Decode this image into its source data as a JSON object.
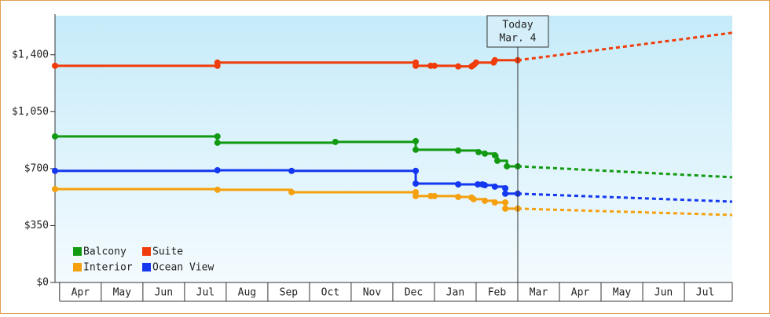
{
  "chart_data": {
    "type": "step-line",
    "xlim": [
      -0.11,
      16.15
    ],
    "ylim": [
      0,
      1640
    ],
    "xticks": [
      {
        "value": 0.5,
        "label": "Apr"
      },
      {
        "value": 1.5,
        "label": "May"
      },
      {
        "value": 2.5,
        "label": "Jun"
      },
      {
        "value": 3.5,
        "label": "Jul"
      },
      {
        "value": 4.5,
        "label": "Aug"
      },
      {
        "value": 5.5,
        "label": "Sep"
      },
      {
        "value": 6.5,
        "label": "Oct"
      },
      {
        "value": 7.5,
        "label": "Nov"
      },
      {
        "value": 8.5,
        "label": "Dec"
      },
      {
        "value": 9.5,
        "label": "Jan"
      },
      {
        "value": 10.5,
        "label": "Feb"
      },
      {
        "value": 11.5,
        "label": "Mar"
      },
      {
        "value": 12.5,
        "label": "Apr"
      },
      {
        "value": 13.5,
        "label": "May"
      },
      {
        "value": 14.5,
        "label": "Jun"
      },
      {
        "value": 15.5,
        "label": "Jul"
      }
    ],
    "yticks": [
      {
        "value": 0,
        "label": "$0"
      },
      {
        "value": 350,
        "label": "$350"
      },
      {
        "value": 700,
        "label": "$700"
      },
      {
        "value": 1050,
        "label": "$1,050"
      },
      {
        "value": 1400,
        "label": "$1,400"
      }
    ],
    "annotation": {
      "text": [
        "Today",
        "Mar. 4"
      ],
      "x": 11.0
    },
    "legend_position": "lower-left",
    "series": [
      {
        "name": "Balcony",
        "color": "#129a12",
        "x": [
          -0.11,
          3.79,
          3.79,
          6.62,
          8.55,
          8.55,
          9.57,
          10.06,
          10.21,
          10.45,
          10.51,
          10.74,
          11.0
        ],
        "values": [
          898,
          898,
          859,
          864,
          869,
          816,
          811,
          801,
          792,
          782,
          748,
          714,
          714
        ],
        "forecast": {
          "x": [
            11.0,
            16.15
          ],
          "values": [
            714,
            647
          ]
        }
      },
      {
        "name": "Suite",
        "color": "#f03c0a",
        "x": [
          -0.11,
          3.79,
          3.79,
          8.55,
          8.55,
          8.91,
          9.0,
          9.57,
          9.89,
          9.94,
          10.0,
          10.42,
          10.45,
          11.0
        ],
        "values": [
          1332,
          1332,
          1352,
          1352,
          1332,
          1332,
          1332,
          1328,
          1328,
          1337,
          1352,
          1352,
          1366,
          1366
        ],
        "forecast": {
          "x": [
            11.0,
            16.15
          ],
          "values": [
            1366,
            1535
          ]
        }
      },
      {
        "name": "Interior",
        "color": "#f5a00f",
        "x": [
          -0.11,
          3.79,
          5.57,
          8.55,
          8.55,
          8.91,
          9.0,
          9.57,
          9.89,
          9.94,
          10.21,
          10.45,
          10.7,
          10.7,
          11.0
        ],
        "values": [
          574,
          570,
          555,
          555,
          531,
          531,
          531,
          526,
          522,
          512,
          502,
          492,
          492,
          454,
          454
        ],
        "forecast": {
          "x": [
            11.0,
            16.15
          ],
          "values": [
            454,
            415
          ]
        }
      },
      {
        "name": "Ocean View",
        "color": "#1437f0",
        "x": [
          -0.11,
          3.79,
          5.57,
          8.55,
          8.55,
          9.57,
          10.04,
          10.15,
          10.21,
          10.45,
          10.7,
          10.7,
          11.0
        ],
        "values": [
          686,
          690,
          686,
          686,
          608,
          603,
          603,
          603,
          598,
          589,
          579,
          546,
          546
        ],
        "forecast": {
          "x": [
            11.0,
            16.15
          ],
          "values": [
            546,
            497
          ]
        }
      }
    ]
  }
}
